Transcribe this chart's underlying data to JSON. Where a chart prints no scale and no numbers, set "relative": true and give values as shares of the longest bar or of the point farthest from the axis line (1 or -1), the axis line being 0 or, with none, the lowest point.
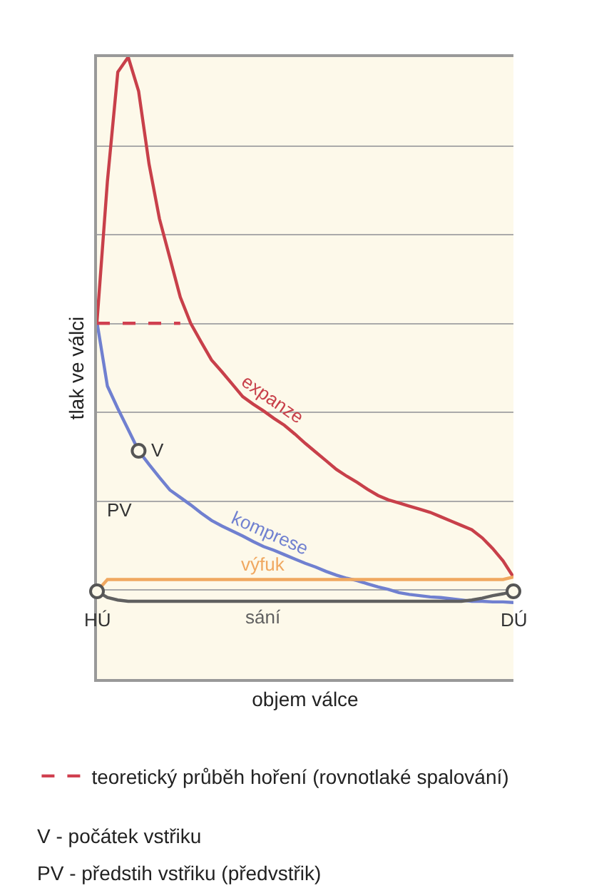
{
  "chart_data": {
    "type": "line",
    "relative": true,
    "xlabel": "objem válce",
    "ylabel": "tlak ve válci",
    "grid": "y",
    "legend": "bottom",
    "categories": [
      null,
      null,
      null,
      null,
      null,
      null,
      null,
      null,
      null,
      null,
      null,
      null,
      null,
      null,
      null,
      null,
      null,
      null,
      null,
      null,
      null,
      null,
      null,
      null,
      null,
      null,
      null,
      null,
      null,
      null,
      null,
      null,
      null,
      null,
      null,
      null,
      null,
      null,
      null,
      null,
      null
    ],
    "series": [
      {
        "name": "expanze",
        "color": "#c8404a",
        "values": [
          0.574,
          0.8,
          0.976,
          1,
          0.945,
          0.828,
          0.74,
          0.677,
          0.614,
          0.572,
          0.542,
          0.513,
          0.494,
          0.474,
          0.454,
          0.442,
          0.431,
          0.419,
          0.408,
          0.394,
          0.379,
          0.365,
          0.351,
          0.337,
          0.326,
          0.316,
          0.305,
          0.295,
          0.288,
          0.283,
          0.278,
          0.273,
          0.268,
          0.261,
          0.254,
          0.247,
          0.24,
          0.227,
          0.21,
          0.19,
          0.164
        ]
      },
      {
        "name": "komprese",
        "color": "#7080d0",
        "values": [
          0.574,
          0.471,
          0.435,
          0.401,
          0.367,
          0.345,
          0.324,
          0.304,
          0.292,
          0.28,
          0.267,
          0.255,
          0.246,
          0.238,
          0.23,
          0.221,
          0.213,
          0.207,
          0.2,
          0.193,
          0.186,
          0.18,
          0.173,
          0.167,
          0.162,
          0.158,
          0.153,
          0.148,
          0.144,
          0.139,
          0.136,
          0.134,
          0.132,
          0.131,
          0.129,
          0.127,
          0.125,
          0.125,
          0.124,
          0.124,
          0.123
        ]
      },
      {
        "name": "výfuk",
        "color": "#f0a860",
        "values": [
          0.141,
          0.16,
          0.16,
          0.16,
          0.16,
          0.16,
          0.16,
          0.16,
          0.16,
          0.16,
          0.16,
          0.16,
          0.16,
          0.16,
          0.16,
          0.16,
          0.16,
          0.16,
          0.16,
          0.16,
          0.16,
          0.16,
          0.16,
          0.16,
          0.16,
          0.16,
          0.16,
          0.16,
          0.16,
          0.16,
          0.16,
          0.16,
          0.16,
          0.16,
          0.16,
          0.16,
          0.16,
          0.16,
          0.16,
          0.16,
          0.164
        ]
      },
      {
        "name": "sání",
        "color": "#606060",
        "values": [
          0.141,
          0.131,
          0.127,
          0.125,
          0.125,
          0.125,
          0.125,
          0.125,
          0.125,
          0.125,
          0.125,
          0.125,
          0.125,
          0.125,
          0.125,
          0.125,
          0.125,
          0.125,
          0.125,
          0.125,
          0.125,
          0.125,
          0.125,
          0.125,
          0.125,
          0.125,
          0.125,
          0.125,
          0.125,
          0.125,
          0.125,
          0.125,
          0.125,
          0.125,
          0.125,
          0.125,
          0.127,
          0.13,
          0.134,
          0.137,
          0.141
        ]
      },
      {
        "name": "teoretický průběh hoření (rovnotlaké spalování)",
        "color": "#d04050",
        "line_style": "dashed",
        "values": [
          0.572,
          0.572,
          0.572,
          0.572,
          0.572,
          0.572,
          0.572,
          0.572,
          0.572,
          null,
          null,
          null,
          null,
          null,
          null,
          null,
          null,
          null,
          null,
          null,
          null,
          null,
          null,
          null,
          null,
          null,
          null,
          null,
          null,
          null,
          null,
          null,
          null,
          null,
          null,
          null,
          null,
          null,
          null,
          null,
          null
        ]
      }
    ],
    "annotations": [
      "V",
      "PV",
      "HÚ",
      "DÚ",
      "V - počátek vstřiku",
      "PV - předstih vstřiku (předvstřik)"
    ]
  }
}
